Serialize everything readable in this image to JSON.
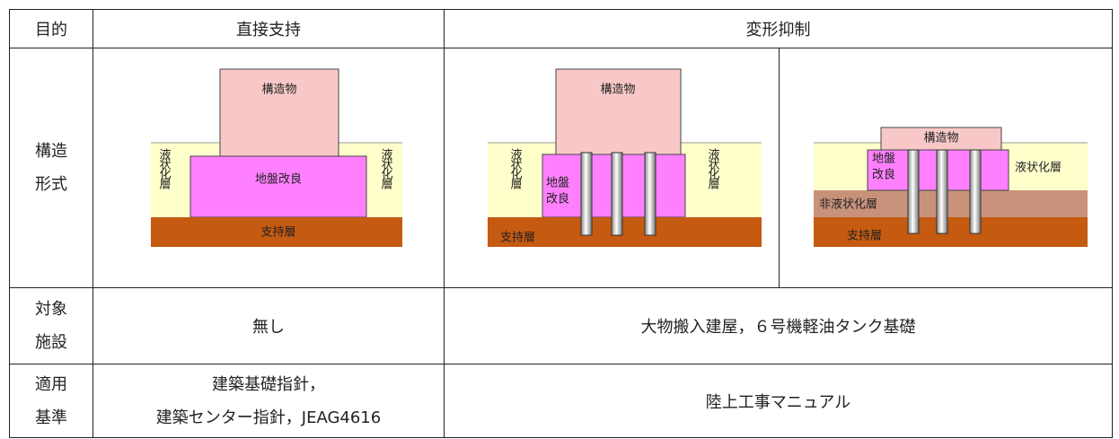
{
  "table": {
    "header": [
      "目的",
      "直接支持",
      "変形抑制"
    ],
    "rows": [
      {
        "label": [
          "構造",
          "形式"
        ],
        "diagrams": [
          {
            "structure": "構造物",
            "improvement": [
              "地盤改良"
            ],
            "liquefied": "液状化層",
            "support": "支持層"
          },
          {
            "structure": "構造物",
            "improvement": [
              "地盤",
              "改良"
            ],
            "liquefied": "液状化層",
            "support": "支持層"
          },
          {
            "structure": "構造物",
            "improvement": [
              "地盤",
              "改良"
            ],
            "liquefied": "液状化層",
            "non_liquefied": "非液状化層",
            "support": "支持層"
          }
        ]
      },
      {
        "label": [
          "対象",
          "施設"
        ],
        "cells": [
          [
            "無し"
          ],
          [
            "大物搬入建屋，６号機軽油タンク基礎"
          ]
        ]
      },
      {
        "label": [
          "適用",
          "基準"
        ],
        "cells": [
          [
            "建築基礎指針，",
            "建築センター指針，JEAG4616"
          ],
          [
            "陸上工事マニュアル"
          ]
        ]
      }
    ]
  }
}
